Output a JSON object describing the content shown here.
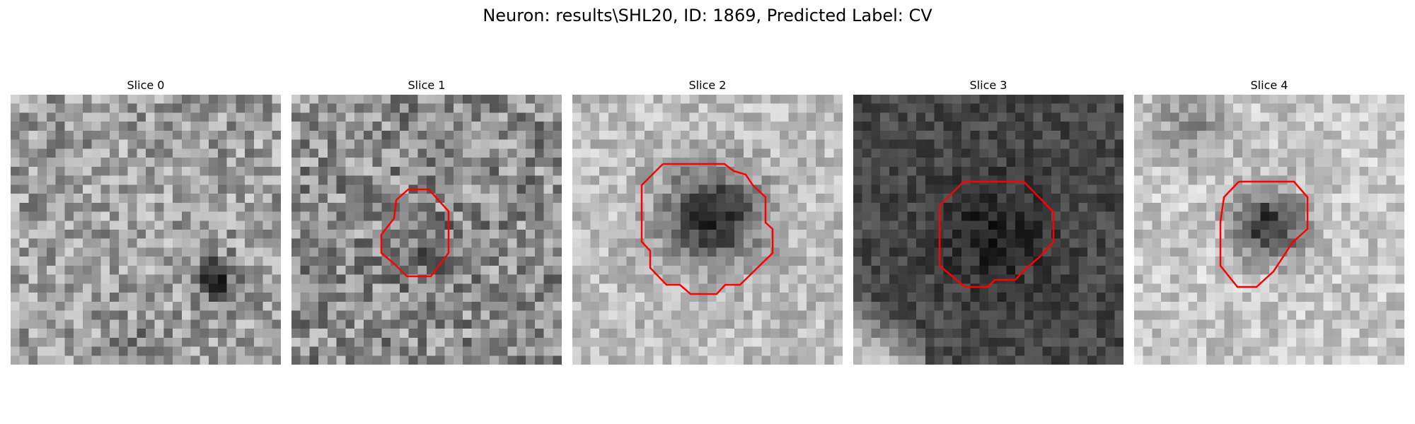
{
  "figure": {
    "title": "Neuron: results\\SHL20, ID: 1869, Predicted Label: CV"
  },
  "contour_color": "#ff0000",
  "panels": [
    {
      "title": "Slice 0",
      "has_contour": false,
      "mean_brightness": 0.62,
      "dark_spot": "lower-right"
    },
    {
      "title": "Slice 1",
      "has_contour": true,
      "mean_brightness": 0.55
    },
    {
      "title": "Slice 2",
      "has_contour": true,
      "mean_brightness": 0.72
    },
    {
      "title": "Slice 3",
      "has_contour": true,
      "mean_brightness": 0.25
    },
    {
      "title": "Slice 4",
      "has_contour": true,
      "mean_brightness": 0.78
    }
  ]
}
